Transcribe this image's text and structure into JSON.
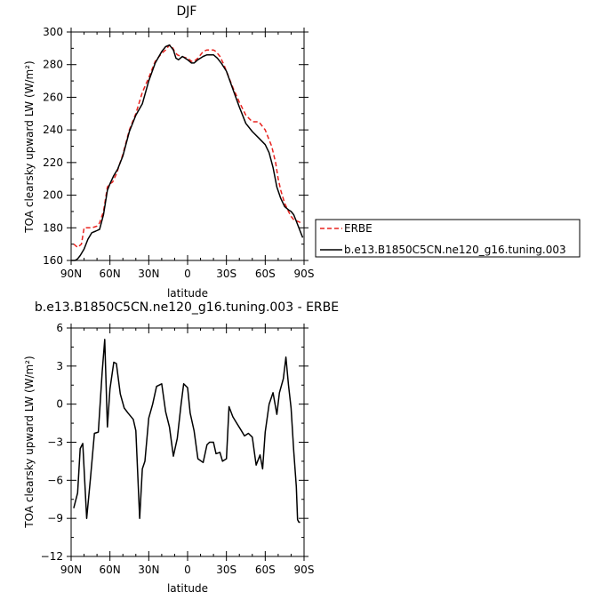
{
  "chart_data": [
    {
      "type": "line",
      "title": "DJF",
      "xlabel": "latitude",
      "ylabel": "TOA clearsky upward LW (W/m²)",
      "xlim": [
        90,
        -90
      ],
      "ylim": [
        160,
        300
      ],
      "x_ticks": [
        90,
        60,
        30,
        0,
        -30,
        -60,
        -90
      ],
      "x_tick_labels": [
        "90N",
        "60N",
        "30N",
        "0",
        "30S",
        "60S",
        "90S"
      ],
      "y_ticks": [
        160,
        180,
        200,
        220,
        240,
        260,
        280,
        300
      ],
      "y_tick_labels": [
        "160",
        "180",
        "200",
        "220",
        "240",
        "260",
        "280",
        "300"
      ],
      "legend_position": "right",
      "series": [
        {
          "name": "ERBE",
          "color": "#e8221e",
          "dash": "dashed",
          "x": [
            88,
            85,
            82,
            80,
            77,
            74,
            70,
            68,
            65,
            62,
            60,
            58,
            55,
            50,
            45,
            40,
            35,
            30,
            25,
            20,
            17,
            14,
            12,
            10,
            8,
            5,
            0,
            -3,
            -5,
            -8,
            -12,
            -15,
            -20,
            -22,
            -25,
            -28,
            -30,
            -35,
            -40,
            -45,
            -50,
            -55,
            -60,
            -62,
            -65,
            -68,
            -70,
            -72,
            -75,
            -78,
            -80,
            -82,
            -85,
            -88
          ],
          "y": [
            170,
            168,
            170,
            180,
            180,
            180,
            181,
            183,
            190,
            205,
            207,
            208,
            213,
            225,
            240,
            250,
            263,
            272,
            282,
            287,
            289,
            292,
            291,
            288,
            286,
            285,
            284,
            282,
            282,
            284,
            288,
            289,
            289,
            288,
            285,
            280,
            276,
            266,
            257,
            249,
            245,
            245,
            240,
            236,
            230,
            220,
            210,
            203,
            195,
            190,
            187,
            185,
            184,
            183
          ]
        },
        {
          "name": "b.e13.B1850C5CN.ne120_g16.tuning.003",
          "color": "#000000",
          "dash": "solid",
          "x": [
            90,
            87,
            85,
            83,
            80,
            77,
            74,
            71,
            68,
            65,
            62,
            60,
            57,
            54,
            50,
            45,
            40,
            35,
            30,
            25,
            20,
            17,
            14,
            11,
            9,
            7,
            4,
            0,
            -3,
            -5,
            -8,
            -12,
            -15,
            -20,
            -23,
            -26,
            -30,
            -35,
            -40,
            -45,
            -50,
            -55,
            -60,
            -63,
            -66,
            -69,
            -72,
            -75,
            -78,
            -80,
            -82,
            -84,
            -87,
            -89
          ],
          "y": [
            160,
            160,
            161,
            163,
            167,
            173,
            177,
            178,
            179,
            188,
            203,
            207,
            212,
            216,
            224,
            239,
            249,
            256,
            270,
            281,
            288,
            291,
            292,
            289,
            284,
            283,
            285,
            283,
            281,
            281,
            283,
            285,
            286,
            286,
            284,
            281,
            276,
            265,
            254,
            244,
            239,
            235,
            231,
            226,
            217,
            205,
            198,
            193,
            191,
            190,
            188,
            184,
            178,
            174
          ]
        }
      ]
    },
    {
      "type": "line",
      "title": "b.e13.B1850C5CN.ne120_g16.tuning.003 - ERBE",
      "xlabel": "latitude",
      "ylabel": "TOA clearsky upward LW (W/m²)",
      "xlim": [
        90,
        -90
      ],
      "ylim": [
        -12,
        6
      ],
      "x_ticks": [
        90,
        60,
        30,
        0,
        -30,
        -60,
        -90
      ],
      "x_tick_labels": [
        "90N",
        "60N",
        "30N",
        "0",
        "30S",
        "60S",
        "90S"
      ],
      "y_ticks": [
        -12,
        -9,
        -6,
        -3,
        0,
        3,
        6
      ],
      "y_tick_labels": [
        "−12",
        "−9",
        "−6",
        "−3",
        "0",
        "3",
        "6"
      ],
      "series": [
        {
          "color": "#000000",
          "x": [
            88,
            85,
            83,
            81,
            78,
            75,
            72,
            69,
            66,
            64,
            62,
            60,
            57,
            55,
            52,
            49,
            46,
            42,
            40,
            37,
            35,
            33,
            30,
            27,
            24,
            20,
            17,
            14,
            11,
            8,
            5,
            3,
            0,
            -2,
            -5,
            -8,
            -12,
            -15,
            -17,
            -20,
            -22,
            -25,
            -27,
            -30,
            -32,
            -35,
            -38,
            -41,
            -44,
            -47,
            -50,
            -53,
            -56,
            -58,
            -60,
            -63,
            -66,
            -69,
            -71,
            -74,
            -76,
            -78,
            -80,
            -82,
            -84,
            -85,
            -86,
            -87
          ],
          "y": [
            -8.2,
            -7,
            -3.5,
            -3.1,
            -9,
            -5.8,
            -2.3,
            -2.2,
            2.5,
            5.1,
            -1.8,
            1.2,
            3.3,
            3.2,
            0.8,
            -0.3,
            -0.7,
            -1.2,
            -2.1,
            -9,
            -5.1,
            -4.5,
            -1.1,
            0,
            1.4,
            1.6,
            -0.6,
            -1.8,
            -4.1,
            -2.7,
            0,
            1.6,
            1.3,
            -0.7,
            -2.1,
            -4.3,
            -4.6,
            -3.2,
            -3,
            -3,
            -3.9,
            -3.8,
            -4.5,
            -4.3,
            -0.2,
            -1,
            -1.5,
            -2,
            -2.5,
            -2.3,
            -2.6,
            -4.8,
            -4,
            -5.1,
            -2.2,
            0,
            0.9,
            -0.8,
            0.9,
            2,
            3.7,
            1.5,
            -0.3,
            -3.7,
            -6.5,
            -9.1,
            -9.3,
            -9.3
          ]
        }
      ]
    }
  ]
}
